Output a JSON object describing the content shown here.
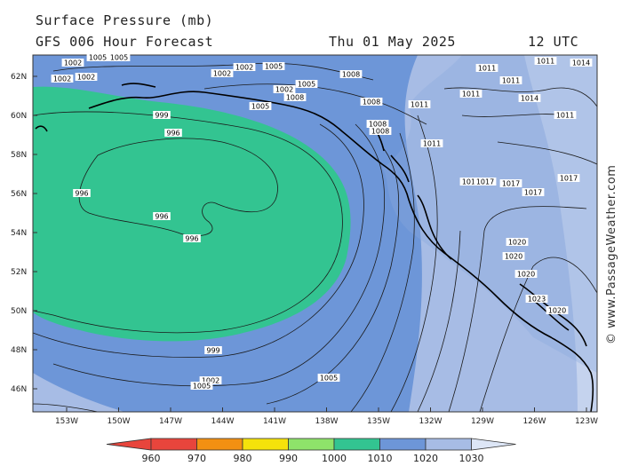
{
  "header": {
    "title": "Surface Pressure (mb)",
    "model": "GFS 006 Hour Forecast",
    "date": "Thu 01 May 2025",
    "time": "12 UTC"
  },
  "watermark": "© www.PassageWeather.com",
  "map": {
    "lat_labels": [
      "62N",
      "60N",
      "58N",
      "56N",
      "54N",
      "52N",
      "50N",
      "48N",
      "46N"
    ],
    "lon_labels": [
      "153W",
      "150W",
      "147W",
      "144W",
      "141W",
      "138W",
      "135W",
      "132W",
      "129W",
      "126W",
      "123W"
    ],
    "isobar_labels": [
      "1002",
      "1005",
      "1002",
      "1002",
      "1005",
      "1002",
      "1002",
      "1005",
      "1002",
      "1005",
      "1008",
      "1005",
      "1008",
      "1008",
      "1011",
      "1008",
      "1008",
      "1011",
      "1011",
      "1011",
      "1011",
      "1014",
      "1014",
      "1011",
      "1011",
      "1017",
      "1017",
      "1017",
      "1017",
      "1017",
      "1020",
      "1020",
      "1020",
      "1023",
      "1020",
      "996",
      "996",
      "996",
      "996",
      "999",
      "999",
      "1002",
      "1005",
      "1005"
    ]
  },
  "legend": {
    "values": [
      "960",
      "970",
      "980",
      "990",
      "1000",
      "1010",
      "1020",
      "1030"
    ],
    "colors": [
      "#e8453c",
      "#f39012",
      "#f5e20b",
      "#8ee36a",
      "#33c491",
      "#6d96d8",
      "#a7bce5",
      "#dde6f6"
    ]
  }
}
